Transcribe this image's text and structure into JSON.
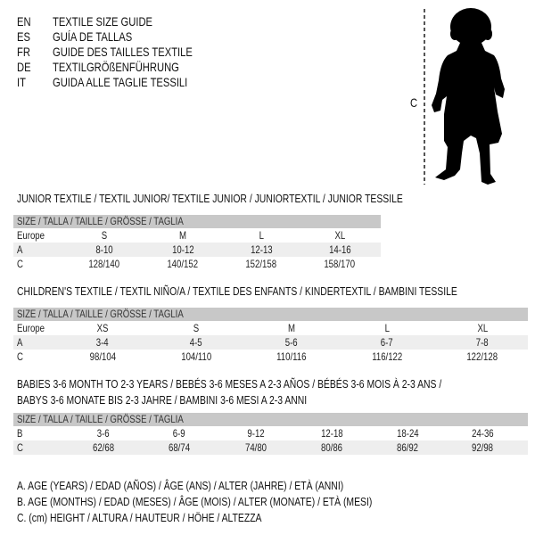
{
  "languages": [
    {
      "code": "EN",
      "title": "TEXTILE SIZE GUIDE"
    },
    {
      "code": "ES",
      "title": "GUÍA DE TALLAS"
    },
    {
      "code": "FR",
      "title": "GUIDE DES TAILLES TEXTILE"
    },
    {
      "code": "DE",
      "title": "TEXTILGRÖßENFÜHRUNG"
    },
    {
      "code": "IT",
      "title": "GUIDA ALLE TAGLIE TESSILI"
    }
  ],
  "figure": {
    "measure_label": "C",
    "icon": "child-silhouette"
  },
  "tables": [
    {
      "title_lines": [
        "JUNIOR TEXTILE / TEXTIL JUNIOR/ TEXTILE JUNIOR / JUNIORTEXTIL / JUNIOR TESSILE"
      ],
      "header": "SIZE / TALLA / TAILLE / GRÖSSE / TAGLIA",
      "rows": [
        {
          "label": "Europe",
          "values": [
            "S",
            "M",
            "L",
            "XL"
          ]
        },
        {
          "label": "A",
          "values": [
            "8-10",
            "10-12",
            "12-13",
            "14-16"
          ]
        },
        {
          "label": "C",
          "values": [
            "128/140",
            "140/152",
            "152/158",
            "158/170"
          ]
        }
      ]
    },
    {
      "title_lines": [
        "CHILDREN'S TEXTILE / TEXTIL NIÑO/A / TEXTILE DES ENFANTS / KINDERTEXTIL / BAMBINI TESSILE"
      ],
      "header": "SIZE / TALLA / TAILLE / GRÖSSE / TAGLIA",
      "rows": [
        {
          "label": "Europe",
          "values": [
            "XS",
            "S",
            "M",
            "L",
            "XL"
          ]
        },
        {
          "label": "A",
          "values": [
            "3-4",
            "4-5",
            "5-6",
            "6-7",
            "7-8"
          ]
        },
        {
          "label": "C",
          "values": [
            "98/104",
            "104/110",
            "110/116",
            "116/122",
            "122/128"
          ]
        }
      ]
    },
    {
      "title_lines": [
        "BABIES 3-6 MONTH TO 2-3 YEARS / BEBÉS 3-6 MESES A 2-3 AÑOS / BÉBÉS 3-6 MOIS À 2-3 ANS /",
        "BABYS 3-6 MONATE BIS 2-3 JAHRE / BAMBINI 3-6 MESI A 2-3 ANNI"
      ],
      "header": "SIZE / TALLA / TAILLE / GRÖSSE / TAGLIA",
      "rows": [
        {
          "label": "B",
          "values": [
            "3-6",
            "6-9",
            "9-12",
            "12-18",
            "18-24",
            "24-36"
          ]
        },
        {
          "label": "C",
          "values": [
            "62/68",
            "68/74",
            "74/80",
            "80/86",
            "86/92",
            "92/98"
          ]
        }
      ]
    }
  ],
  "legend": [
    "A. AGE (YEARS) / EDAD (AÑOS) / ÂGE (ANS) / ALTER (JAHRE) / ETÀ (ANNI)",
    "B. AGE (MONTHS) / EDAD (MESES) / ÂGE (MOIS) / ALTER (MONATE) / ETÀ (MESI)",
    "C. (cm) HEIGHT / ALTURA / HAUTEUR / HÖHE / ALTEZZA"
  ],
  "colors": {
    "header_bg": "#c8c8c8",
    "shade_bg": "#eeeeee"
  }
}
